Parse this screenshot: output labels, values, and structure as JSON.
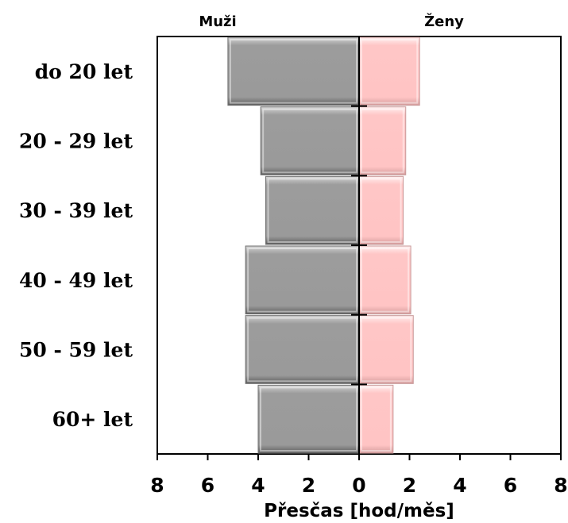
{
  "chart_data": {
    "type": "bar",
    "orientation": "horizontal",
    "layout": "population-pyramid",
    "categories": [
      "do 20 let",
      "20 - 29 let",
      "30 - 39 let",
      "40 - 49 let",
      "50 - 59 let",
      "60+ let"
    ],
    "series": [
      {
        "name": "Muži",
        "side": "left",
        "color": "#9e9e9e",
        "values": [
          5.2,
          3.9,
          3.7,
          4.5,
          4.5,
          4.0
        ]
      },
      {
        "name": "Ženy",
        "side": "right",
        "color": "#ffc8c8",
        "values": [
          2.4,
          1.85,
          1.75,
          2.05,
          2.15,
          1.35
        ]
      }
    ],
    "xlabel": "Přesčas [hod/měs]",
    "xlim": [
      -8,
      8
    ],
    "xticks": [
      -8,
      -6,
      -4,
      -2,
      0,
      2,
      4,
      6,
      8
    ],
    "xtick_labels": [
      "8",
      "6",
      "4",
      "2",
      "0",
      "2",
      "4",
      "6",
      "8"
    ],
    "grid": false,
    "legend": "top"
  }
}
